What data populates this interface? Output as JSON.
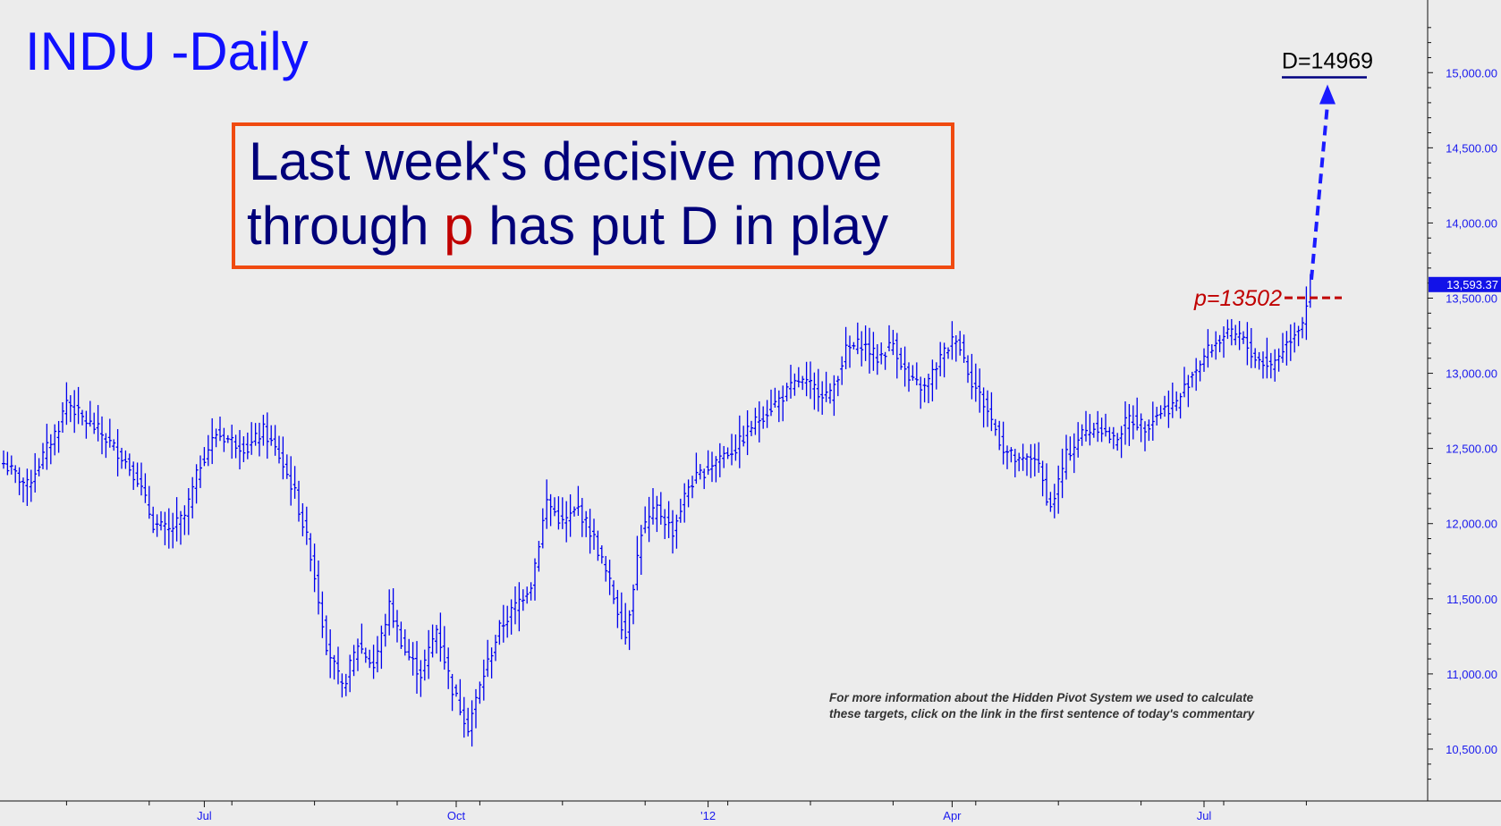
{
  "chart_data": {
    "type": "ohlc",
    "title": "INDU -Daily",
    "ylim": [
      10250,
      15400
    ],
    "yticks": [
      10500,
      11000,
      11500,
      12000,
      12500,
      13000,
      13500,
      14000,
      14500,
      15000
    ],
    "ytick_labels": [
      "10,500.00",
      "11,000.00",
      "11,500.00",
      "12,000.00",
      "12,500.00",
      "13,000.00",
      "13,500.00",
      "14,000.00",
      "14,500.00",
      "15,000.00"
    ],
    "x_tick_labels": [
      "Jul",
      "Oct",
      "'12",
      "Apr",
      "Jul"
    ],
    "x_tick_bar_index": [
      51,
      115,
      179,
      241,
      305
    ],
    "last_value": 13593.37,
    "last_value_label": "13,593.37",
    "series_anchors": [
      [
        0,
        12400
      ],
      [
        6,
        12250
      ],
      [
        10,
        12450
      ],
      [
        14,
        12650
      ],
      [
        16,
        12820
      ],
      [
        20,
        12700
      ],
      [
        24,
        12620
      ],
      [
        30,
        12450
      ],
      [
        34,
        12300
      ],
      [
        38,
        12000
      ],
      [
        42,
        11950
      ],
      [
        46,
        12050
      ],
      [
        50,
        12400
      ],
      [
        54,
        12600
      ],
      [
        58,
        12550
      ],
      [
        62,
        12500
      ],
      [
        66,
        12620
      ],
      [
        70,
        12450
      ],
      [
        74,
        12200
      ],
      [
        78,
        11800
      ],
      [
        82,
        11200
      ],
      [
        86,
        10900
      ],
      [
        90,
        11200
      ],
      [
        94,
        11050
      ],
      [
        98,
        11450
      ],
      [
        102,
        11150
      ],
      [
        106,
        11000
      ],
      [
        110,
        11300
      ],
      [
        114,
        10900
      ],
      [
        118,
        10650
      ],
      [
        122,
        11000
      ],
      [
        126,
        11300
      ],
      [
        130,
        11450
      ],
      [
        134,
        11600
      ],
      [
        138,
        12150
      ],
      [
        142,
        12000
      ],
      [
        146,
        12100
      ],
      [
        150,
        11900
      ],
      [
        154,
        11600
      ],
      [
        158,
        11250
      ],
      [
        162,
        11950
      ],
      [
        166,
        12100
      ],
      [
        170,
        11950
      ],
      [
        174,
        12250
      ],
      [
        178,
        12350
      ],
      [
        182,
        12450
      ],
      [
        186,
        12500
      ],
      [
        190,
        12650
      ],
      [
        194,
        12750
      ],
      [
        198,
        12850
      ],
      [
        202,
        12950
      ],
      [
        206,
        12900
      ],
      [
        210,
        12850
      ],
      [
        214,
        13150
      ],
      [
        218,
        13200
      ],
      [
        222,
        13100
      ],
      [
        226,
        13200
      ],
      [
        230,
        12950
      ],
      [
        234,
        12900
      ],
      [
        238,
        13100
      ],
      [
        242,
        13250
      ],
      [
        246,
        12950
      ],
      [
        250,
        12750
      ],
      [
        254,
        12500
      ],
      [
        258,
        12400
      ],
      [
        262,
        12450
      ],
      [
        266,
        12100
      ],
      [
        270,
        12450
      ],
      [
        274,
        12600
      ],
      [
        278,
        12650
      ],
      [
        282,
        12550
      ],
      [
        286,
        12700
      ],
      [
        290,
        12650
      ],
      [
        294,
        12750
      ],
      [
        298,
        12800
      ],
      [
        302,
        13000
      ],
      [
        306,
        13150
      ],
      [
        310,
        13250
      ],
      [
        314,
        13250
      ],
      [
        318,
        13100
      ],
      [
        322,
        13050
      ],
      [
        326,
        13200
      ],
      [
        330,
        13350
      ],
      [
        332,
        13593
      ]
    ],
    "annotations": [
      {
        "label": "p=13502",
        "value": 13502,
        "style": "dashed",
        "color": "#c00000"
      },
      {
        "label": "D=14969",
        "value": 14969,
        "style": "solid",
        "color": "#000080"
      }
    ]
  },
  "headline": {
    "line1": "Last week's decisive move",
    "line2_pre": "through ",
    "line2_p": "p",
    "line2_post": " has put D in play"
  },
  "note": {
    "line1": "For more information about the Hidden Pivot System we used to calculate",
    "line2": "these targets, click on the link in the first sentence of today's commentary"
  },
  "colors": {
    "bars": "#0000ee",
    "headline_border": "#f04a10",
    "pivot": "#c00000",
    "target_arrow": "#1b1bff"
  }
}
